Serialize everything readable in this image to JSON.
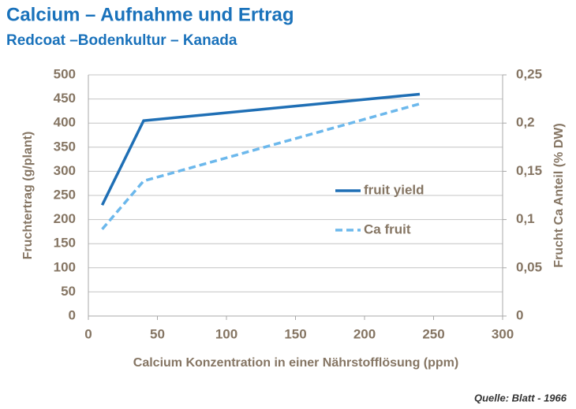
{
  "chart_data": {
    "type": "line",
    "title": "Calcium – Aufnahme und Ertrag",
    "subtitle": "Redcoat –Bodenkultur – Kanada",
    "x_label": "Calcium Konzentration in einer Nährstofflösung (ppm)",
    "y_label": "Fruchtertrag (g/plant)",
    "y2_label": "Frucht Ca Anteil (% DW)",
    "source": "Quelle: Blatt - 1966",
    "x": [
      10,
      40,
      240
    ],
    "series": [
      {
        "name": "fruit yield",
        "color": "#1f6fb5",
        "linestyle": "solid",
        "values": [
          230,
          405,
          460
        ]
      },
      {
        "name": "Ca fruit",
        "color": "#6cb8ec",
        "linestyle": "dashed",
        "axis": "y2",
        "values": [
          0.09,
          0.14,
          0.22
        ]
      }
    ],
    "xlim": [
      0,
      300
    ],
    "xticks": [
      0,
      50,
      100,
      150,
      200,
      250,
      300
    ],
    "ylim": [
      0,
      500
    ],
    "yticks": [
      0,
      50,
      100,
      150,
      200,
      250,
      300,
      350,
      400,
      450,
      500
    ],
    "y2lim": [
      0,
      0.25
    ],
    "y2ticks": [
      0,
      {
        "value": 0.05,
        "label": "0,05"
      },
      {
        "value": 0.1,
        "label": "0,1"
      },
      {
        "value": 0.15,
        "label": "0,15"
      },
      {
        "value": 0.2,
        "label": "0,2"
      },
      {
        "value": 0.25,
        "label": "0,25"
      }
    ],
    "grid": true,
    "legend": "center right"
  }
}
